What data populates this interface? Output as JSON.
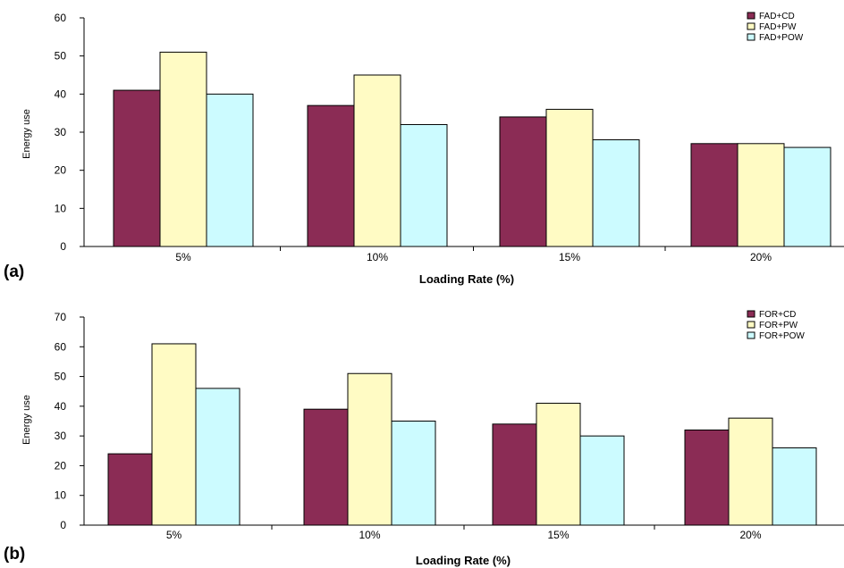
{
  "chart_data": [
    {
      "type": "bar",
      "panel_label": "(a)",
      "categories": [
        "5%",
        "10%",
        "15%",
        "20%"
      ],
      "series": [
        {
          "name": "FAD+CD",
          "values": [
            41,
            37,
            34,
            27
          ],
          "color": "#8b2c55"
        },
        {
          "name": "FAD+PW",
          "values": [
            51,
            45,
            36,
            27
          ],
          "color": "#fffbc4"
        },
        {
          "name": "FAD+POW",
          "values": [
            40,
            32,
            28,
            26
          ],
          "color": "#ccfbff"
        }
      ],
      "xlabel": "Loading Rate (%)",
      "ylabel": "Energy use",
      "ylim": [
        0,
        60
      ],
      "yticks": [
        0,
        10,
        20,
        30,
        40,
        50,
        60
      ],
      "grid": false,
      "legend": "top-right"
    },
    {
      "type": "bar",
      "panel_label": "(b)",
      "categories": [
        "5%",
        "10%",
        "15%",
        "20%"
      ],
      "series": [
        {
          "name": "FOR+CD",
          "values": [
            24,
            39,
            34,
            32
          ],
          "color": "#8b2c55"
        },
        {
          "name": "FOR+PW",
          "values": [
            61,
            51,
            41,
            36
          ],
          "color": "#fffbc4"
        },
        {
          "name": "FOR+POW",
          "values": [
            46,
            35,
            30,
            26
          ],
          "color": "#ccfbff"
        }
      ],
      "xlabel": "Loading Rate (%)",
      "ylabel": "Energy use",
      "ylim": [
        0,
        70
      ],
      "yticks": [
        0,
        10,
        20,
        30,
        40,
        50,
        60,
        70
      ],
      "grid": false,
      "legend": "top-right"
    }
  ]
}
